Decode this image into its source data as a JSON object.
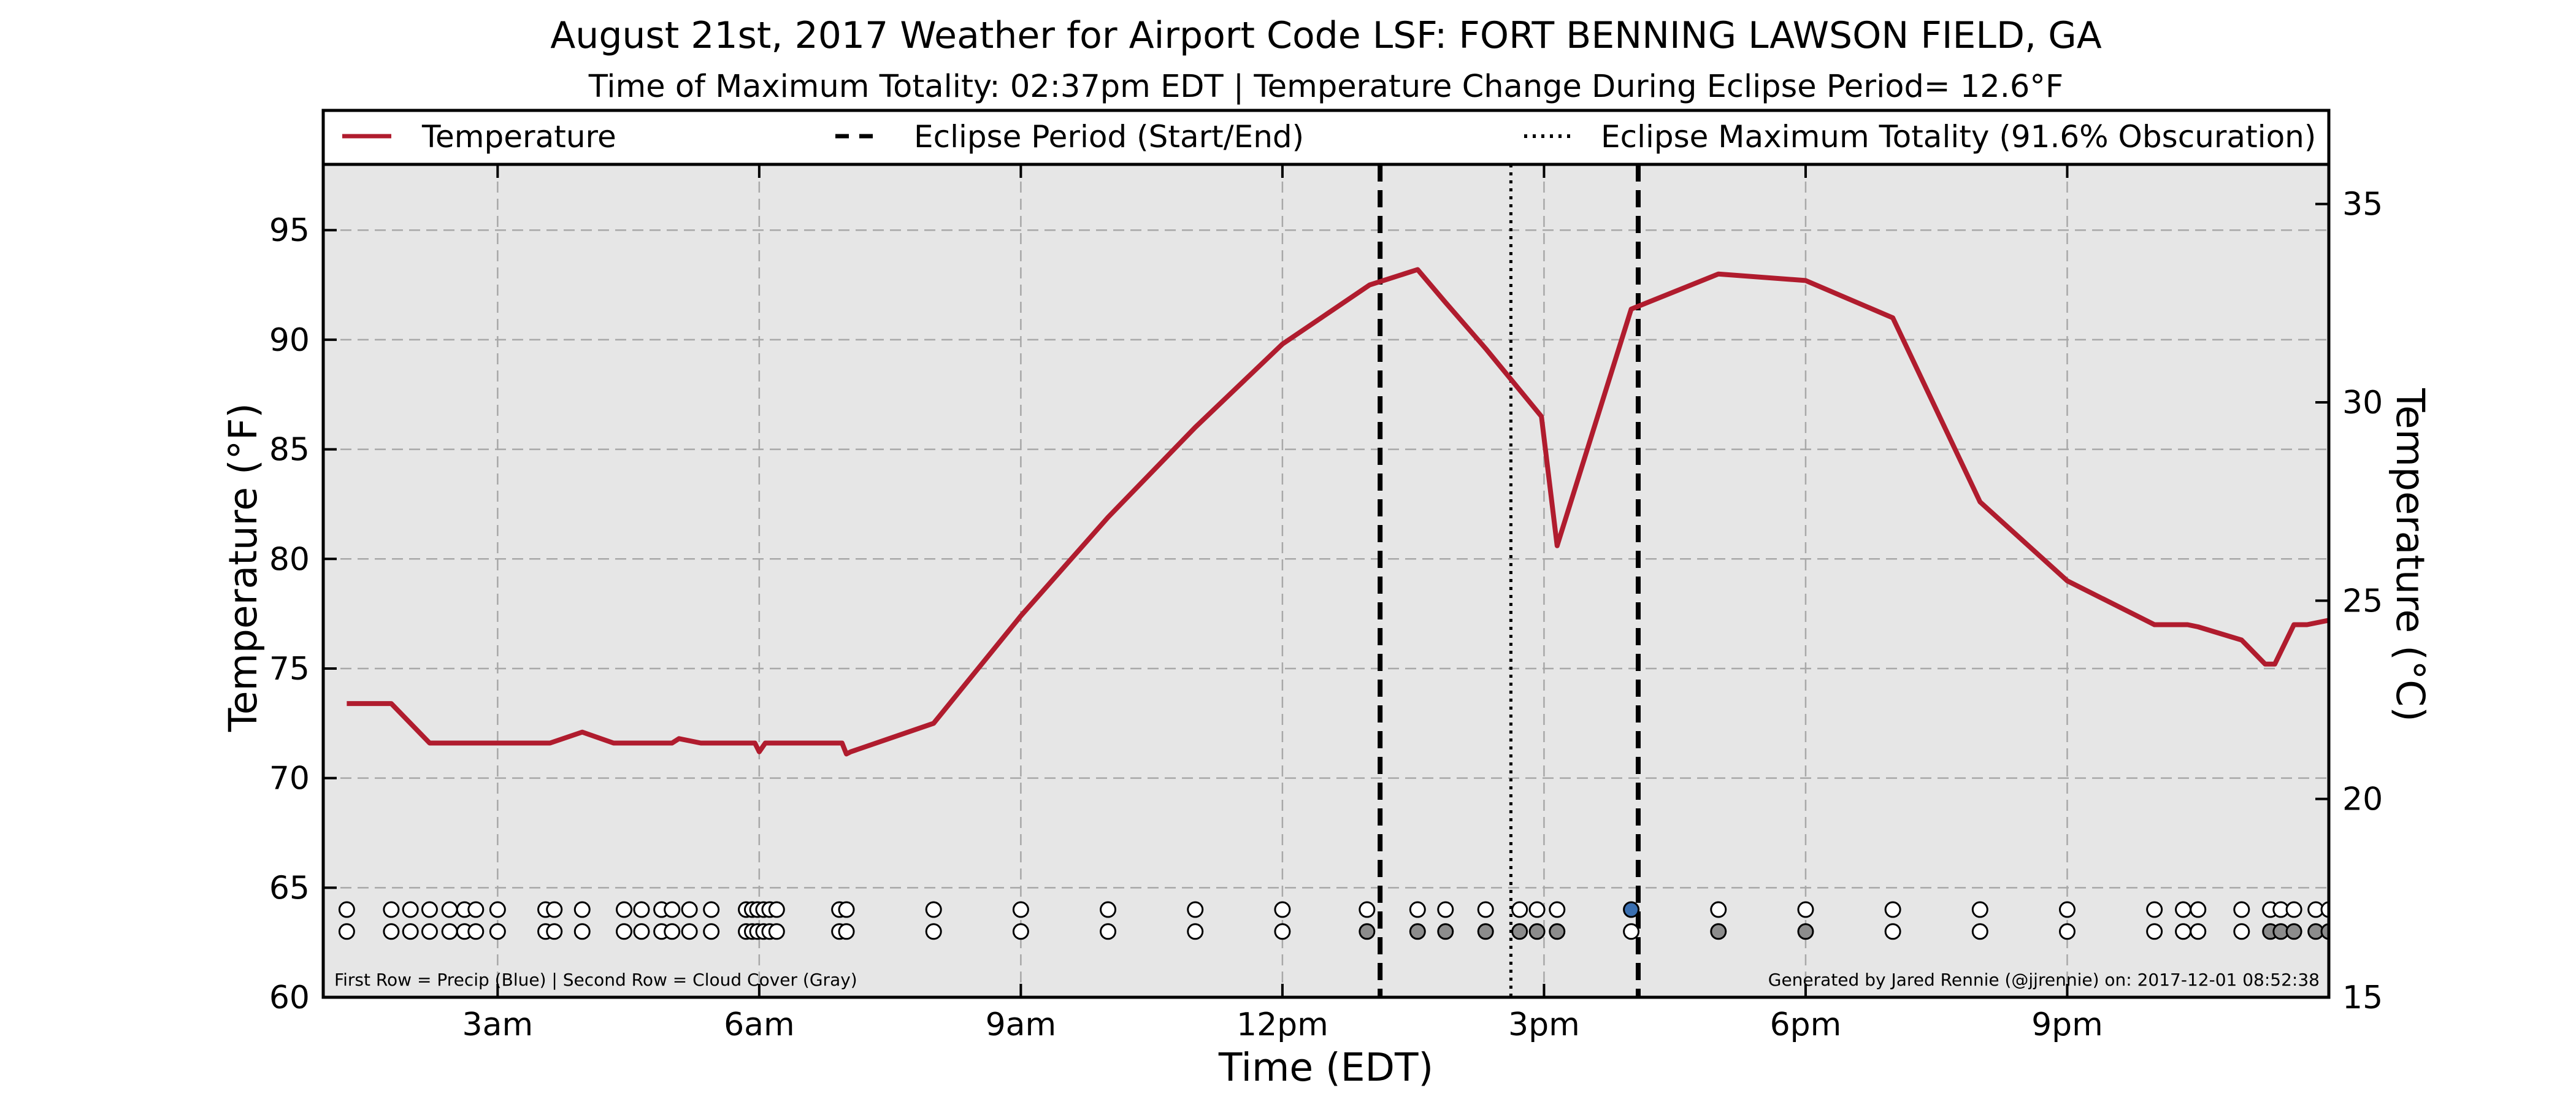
{
  "chart": {
    "title": "August 21st, 2017 Weather for Airport Code LSF: FORT BENNING LAWSON FIELD, GA",
    "subtitle": "Time of Maximum Totality: 02:37pm EDT | Temperature Change During Eclipse Period= 12.6°F",
    "xlabel": "Time (EDT)",
    "ylabel_left": "Temperature (°F)",
    "ylabel_right": "Temperature (°C)",
    "footnote_left": "First Row = Precip (Blue) | Second Row = Cloud Cover (Gray)",
    "footnote_right": "Generated by Jared Rennie (@jjrennie) on: 2017-12-01 08:52:38"
  },
  "colors": {
    "temperature": "#b01c2e",
    "plot_bg": "#e6e6e6",
    "precip": "#3a6fb0",
    "cloud": "#8c8c8c",
    "grid": "#a8a8a8"
  },
  "chart_data": {
    "type": "line",
    "x_unit": "hours after midnight EDT",
    "xlim": [
      1.0,
      24.0
    ],
    "ylim": [
      60,
      98
    ],
    "y2lim": [
      15,
      36
    ],
    "x_ticks": [
      {
        "value": 3,
        "label": "3am"
      },
      {
        "value": 6,
        "label": "6am"
      },
      {
        "value": 9,
        "label": "9am"
      },
      {
        "value": 12,
        "label": "12pm"
      },
      {
        "value": 15,
        "label": "3pm"
      },
      {
        "value": 18,
        "label": "6pm"
      },
      {
        "value": 21,
        "label": "9pm"
      }
    ],
    "y_ticks": [
      60,
      65,
      70,
      75,
      80,
      85,
      90,
      95
    ],
    "y2_ticks": [
      15,
      20,
      25,
      30,
      35
    ],
    "grid": true,
    "legend": [
      {
        "label": "Temperature",
        "style": "solid"
      },
      {
        "label": "Eclipse Period (Start/End)",
        "style": "dashed"
      },
      {
        "label": "Eclipse Maximum Totality (91.6% Obscuration)",
        "style": "dotted"
      }
    ],
    "legend_position": "top",
    "series": [
      {
        "name": "Temperature",
        "x": [
          1.27,
          1.78,
          2.22,
          2.7,
          3.0,
          3.3,
          3.6,
          3.97,
          4.33,
          4.7,
          5.0,
          5.08,
          5.33,
          5.62,
          5.95,
          6.0,
          6.07,
          6.33,
          6.67,
          6.95,
          7.0,
          7.05,
          8.0,
          9.0,
          10.0,
          11.0,
          12.0,
          13.0,
          13.55,
          13.87,
          14.33,
          14.97,
          15.15,
          16.0,
          17.0,
          18.0,
          19.0,
          20.0,
          21.0,
          22.0,
          22.38,
          22.5,
          23.0,
          23.27,
          23.38,
          23.6,
          23.75,
          24.0
        ],
        "values": [
          73.4,
          73.4,
          71.6,
          71.6,
          71.6,
          71.6,
          71.6,
          72.1,
          71.6,
          71.6,
          71.6,
          71.8,
          71.6,
          71.6,
          71.6,
          71.2,
          71.6,
          71.6,
          71.6,
          71.6,
          71.1,
          71.2,
          72.5,
          77.4,
          81.9,
          86.0,
          89.8,
          92.5,
          93.2,
          91.7,
          89.6,
          86.5,
          80.6,
          91.4,
          93.0,
          92.7,
          91.0,
          82.6,
          79.0,
          77.0,
          77.0,
          76.9,
          76.3,
          75.2,
          75.2,
          77.0,
          77.0,
          77.2
        ]
      }
    ],
    "eclipse_start": 13.12,
    "eclipse_end": 16.08,
    "eclipse_max": 14.62,
    "precip_row_y": 64,
    "cloud_row_y": 63,
    "obs_times": [
      1.27,
      1.78,
      2.0,
      2.22,
      2.45,
      2.62,
      2.75,
      3.0,
      3.55,
      3.65,
      3.97,
      4.45,
      4.65,
      4.88,
      5.0,
      5.2,
      5.45,
      5.85,
      5.92,
      5.98,
      6.05,
      6.12,
      6.2,
      6.92,
      7.0,
      8.0,
      9.0,
      10.0,
      11.0,
      12.0,
      12.97,
      13.55,
      13.87,
      14.33,
      14.72,
      14.92,
      15.15,
      16.0,
      17.0,
      18.0,
      19.0,
      20.0,
      21.0,
      22.0,
      22.33,
      22.5,
      23.0,
      23.33,
      23.45,
      23.6,
      23.85,
      24.0
    ],
    "precip_at": [
      16.0
    ],
    "cloud_at": [
      12.97,
      13.55,
      13.87,
      14.33,
      14.72,
      14.92,
      15.15,
      17.0,
      18.0,
      23.33,
      23.45,
      23.6,
      23.85,
      24.0
    ]
  }
}
